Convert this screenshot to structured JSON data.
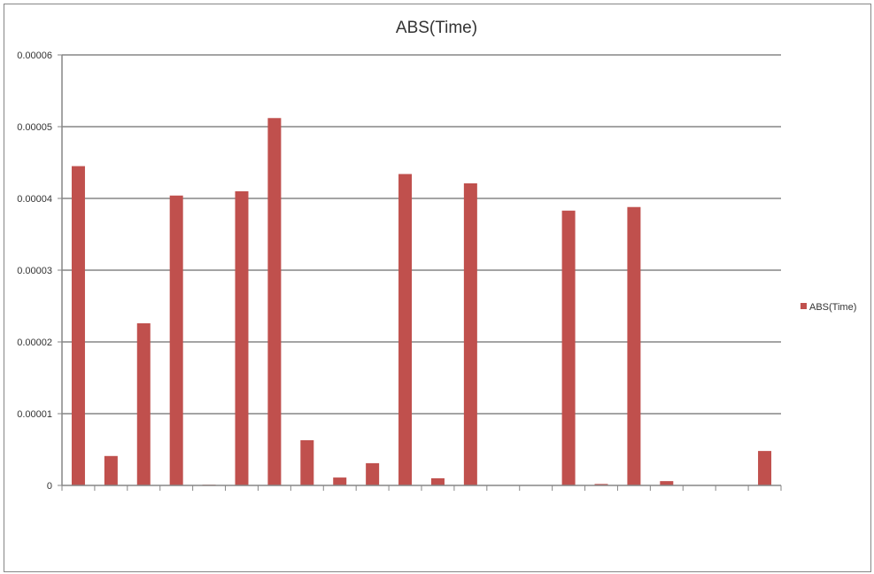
{
  "chart_data": {
    "type": "bar",
    "title": "ABS(Time)",
    "xlabel": "",
    "ylabel": "",
    "ylim": [
      0,
      6e-05
    ],
    "yticks": [
      0,
      1e-05,
      2e-05,
      3e-05,
      4e-05,
      5e-05,
      6e-05
    ],
    "ytick_labels": [
      "0",
      "0.00001",
      "0.00002",
      "0.00003",
      "0.00004",
      "0.00005",
      "0.00006"
    ],
    "categories": [
      "",
      "",
      "",
      "",
      "",
      "",
      "",
      "",
      "",
      "",
      "",
      "",
      "",
      "",
      "",
      "",
      "",
      "",
      "",
      "",
      "",
      ""
    ],
    "series": [
      {
        "name": "ABS(Time)",
        "color": "#c0504d",
        "values": [
          4.45e-05,
          4.1e-06,
          2.26e-05,
          4.04e-05,
          1e-07,
          4.1e-05,
          5.12e-05,
          6.3e-06,
          1.1e-06,
          3.1e-06,
          4.34e-05,
          1e-06,
          4.21e-05,
          0,
          0,
          3.83e-05,
          2e-07,
          3.88e-05,
          6e-07,
          0,
          0,
          4.8e-06
        ]
      }
    ],
    "grid": true,
    "legend": "right"
  }
}
